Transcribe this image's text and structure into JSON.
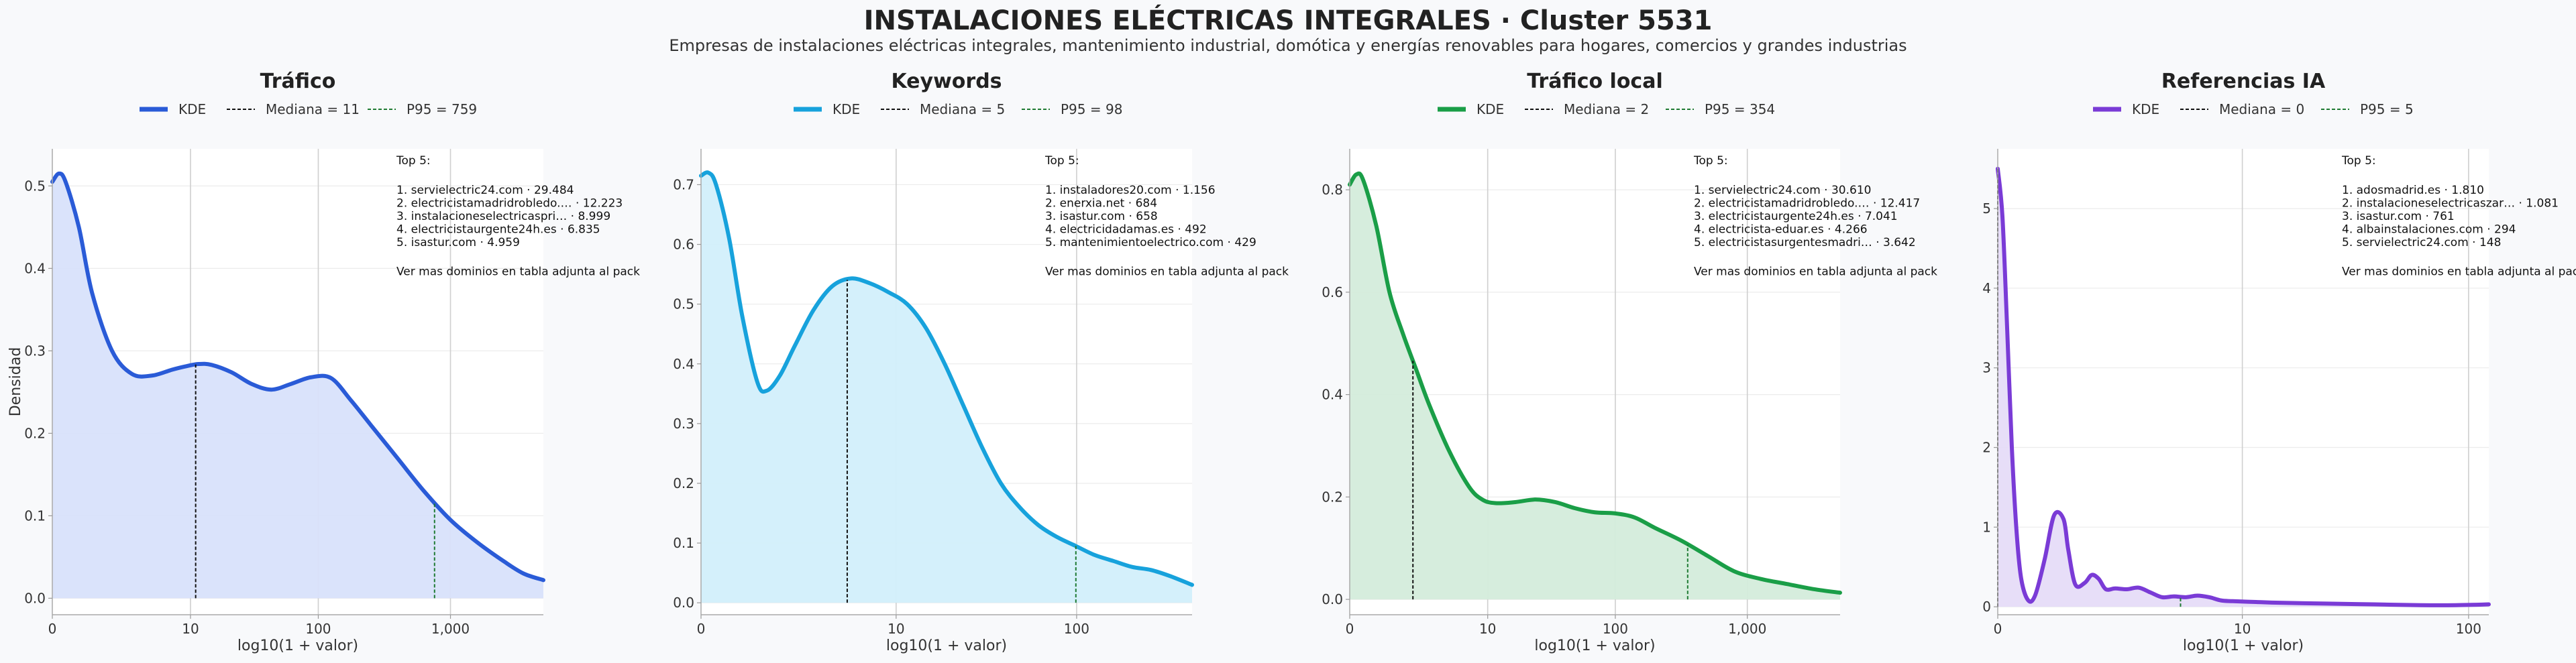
{
  "title": "INSTALACIONES ELÉCTRICAS INTEGRALES · Cluster 5531",
  "subtitle": "Empresas de instalaciones eléctricas integrales, mantenimiento industrial, domótica y energías renovables para hogares, comercios y grandes industrias",
  "shared": {
    "ylabel": "Densidad",
    "xlabel": "log10(1 + valor)",
    "kde_label": "KDE",
    "top_title": "Top 5:",
    "top_footer": "Ver mas dominios en tabla adjunta al pack"
  },
  "chart_data": [
    {
      "type": "area",
      "title": "Tráfico",
      "color": "#2a5bd7",
      "fill": "#d8e2fb",
      "median_label": "Mediana = 11",
      "p95_label": "P95 = 759",
      "median_x": 1.08,
      "p95_x": 2.88,
      "xlim": [
        0,
        3.7
      ],
      "ylim": [
        -0.02,
        0.545
      ],
      "yticks": [
        0.0,
        0.1,
        0.2,
        0.3,
        0.4,
        0.5
      ],
      "ytick_labels": [
        "0.0",
        "0.1",
        "0.2",
        "0.3",
        "0.4",
        "0.5"
      ],
      "xticks": [
        0,
        1.041,
        2.004,
        3.0
      ],
      "xtick_labels": [
        "0",
        "10",
        "100",
        "1,000"
      ],
      "x": [
        0,
        0.05,
        0.1,
        0.2,
        0.3,
        0.45,
        0.6,
        0.75,
        0.9,
        1.0,
        1.1,
        1.2,
        1.35,
        1.5,
        1.65,
        1.8,
        1.95,
        2.1,
        2.25,
        2.4,
        2.6,
        2.8,
        3.0,
        3.2,
        3.4,
        3.55,
        3.7
      ],
      "y": [
        0.505,
        0.515,
        0.505,
        0.45,
        0.37,
        0.3,
        0.272,
        0.27,
        0.277,
        0.281,
        0.284,
        0.283,
        0.274,
        0.26,
        0.253,
        0.26,
        0.268,
        0.267,
        0.24,
        0.21,
        0.17,
        0.13,
        0.095,
        0.068,
        0.045,
        0.03,
        0.022
      ],
      "top5": [
        "1. servielectric24.com · 29.484",
        "2. electricistamadridrobledo.… · 12.223",
        "3. instalacioneselectricaspri… · 8.999",
        "4. electricistaurgente24h.es · 6.835",
        "5. isastur.com · 4.959"
      ]
    },
    {
      "type": "area",
      "title": "Keywords",
      "color": "#17a2dc",
      "fill": "#d2effb",
      "median_label": "Mediana = 5",
      "p95_label": "P95 = 98",
      "median_x": 0.78,
      "p95_x": 2.0,
      "xlim": [
        0,
        2.62
      ],
      "ylim": [
        -0.02,
        0.76
      ],
      "yticks": [
        0.0,
        0.1,
        0.2,
        0.3,
        0.4,
        0.5,
        0.6,
        0.7
      ],
      "ytick_labels": [
        "0.0",
        "0.1",
        "0.2",
        "0.3",
        "0.4",
        "0.5",
        "0.6",
        "0.7"
      ],
      "xticks": [
        0,
        1.041,
        2.004
      ],
      "xtick_labels": [
        "0",
        "10",
        "100"
      ],
      "x": [
        0,
        0.04,
        0.08,
        0.15,
        0.22,
        0.3,
        0.35,
        0.42,
        0.5,
        0.6,
        0.7,
        0.8,
        0.9,
        1.0,
        1.1,
        1.2,
        1.3,
        1.4,
        1.5,
        1.6,
        1.7,
        1.8,
        1.9,
        2.0,
        2.1,
        2.2,
        2.3,
        2.4,
        2.5,
        2.62
      ],
      "y": [
        0.715,
        0.72,
        0.7,
        0.61,
        0.48,
        0.37,
        0.355,
        0.38,
        0.43,
        0.49,
        0.53,
        0.543,
        0.535,
        0.52,
        0.5,
        0.46,
        0.4,
        0.33,
        0.26,
        0.2,
        0.16,
        0.13,
        0.11,
        0.095,
        0.08,
        0.07,
        0.06,
        0.055,
        0.045,
        0.03
      ],
      "top5": [
        "1. instaladores20.com · 1.156",
        "2. enerxia.net · 684",
        "3. isastur.com · 658",
        "4. electricidadamas.es · 492",
        "5. mantenimientoelectrico.com · 429"
      ]
    },
    {
      "type": "area",
      "title": "Tráfico local",
      "color": "#1a9e47",
      "fill": "#d4ecdb",
      "median_label": "Mediana = 2",
      "p95_label": "P95 = 354",
      "median_x": 0.477,
      "p95_x": 2.55,
      "xlim": [
        0,
        3.7
      ],
      "ylim": [
        -0.03,
        0.88
      ],
      "yticks": [
        0.0,
        0.2,
        0.4,
        0.6,
        0.8
      ],
      "ytick_labels": [
        "0.0",
        "0.2",
        "0.4",
        "0.6",
        "0.8"
      ],
      "xticks": [
        0,
        1.041,
        2.004,
        3.0
      ],
      "xtick_labels": [
        "0",
        "10",
        "100",
        "1,000"
      ],
      "x": [
        0,
        0.05,
        0.1,
        0.2,
        0.3,
        0.4,
        0.5,
        0.6,
        0.75,
        0.9,
        1.0,
        1.1,
        1.25,
        1.4,
        1.55,
        1.7,
        1.85,
        2.0,
        2.15,
        2.3,
        2.5,
        2.7,
        2.9,
        3.1,
        3.3,
        3.5,
        3.7
      ],
      "y": [
        0.81,
        0.83,
        0.82,
        0.73,
        0.6,
        0.52,
        0.45,
        0.38,
        0.29,
        0.22,
        0.195,
        0.188,
        0.19,
        0.195,
        0.19,
        0.178,
        0.17,
        0.168,
        0.16,
        0.14,
        0.115,
        0.085,
        0.055,
        0.04,
        0.03,
        0.02,
        0.013
      ],
      "top5": [
        "1. servielectric24.com · 30.610",
        "2. electricistamadridrobledo.… · 12.417",
        "3. electricistaurgente24h.es · 7.041",
        "4. electricista-eduar.es · 4.266",
        "5. electricistasurgentesmadri… · 3.642"
      ]
    },
    {
      "type": "area",
      "title": "Referencias IA",
      "color": "#7a3bd6",
      "fill": "#e6dcf8",
      "median_label": "Mediana = 0",
      "p95_label": "P95 = 5",
      "median_x": 0.0,
      "p95_x": 0.778,
      "xlim": [
        0,
        2.09
      ],
      "ylim": [
        -0.1,
        5.75
      ],
      "yticks": [
        0,
        1,
        2,
        3,
        4,
        5
      ],
      "ytick_labels": [
        "0",
        "1",
        "2",
        "3",
        "4",
        "5"
      ],
      "xticks": [
        0,
        1.041,
        2.004
      ],
      "xtick_labels": [
        "0",
        "10",
        "100"
      ],
      "x": [
        0,
        0.02,
        0.04,
        0.06,
        0.08,
        0.1,
        0.13,
        0.16,
        0.2,
        0.24,
        0.28,
        0.3,
        0.33,
        0.37,
        0.4,
        0.43,
        0.46,
        0.5,
        0.55,
        0.6,
        0.65,
        0.7,
        0.75,
        0.8,
        0.85,
        0.9,
        0.95,
        1.0,
        1.1,
        1.2,
        1.4,
        1.6,
        1.8,
        1.95,
        2.09
      ],
      "y": [
        5.5,
        4.9,
        3.5,
        2.0,
        0.95,
        0.35,
        0.08,
        0.15,
        0.6,
        1.15,
        1.1,
        0.72,
        0.28,
        0.3,
        0.4,
        0.35,
        0.22,
        0.23,
        0.22,
        0.24,
        0.18,
        0.12,
        0.13,
        0.12,
        0.14,
        0.12,
        0.08,
        0.07,
        0.06,
        0.05,
        0.04,
        0.03,
        0.02,
        0.02,
        0.03
      ],
      "top5": [
        "1. adosmadrid.es · 1.810",
        "2. instalacioneselectricaszar… · 1.081",
        "3. isastur.com · 761",
        "4. albainstalaciones.com · 294",
        "5. servielectric24.com · 148"
      ]
    }
  ]
}
